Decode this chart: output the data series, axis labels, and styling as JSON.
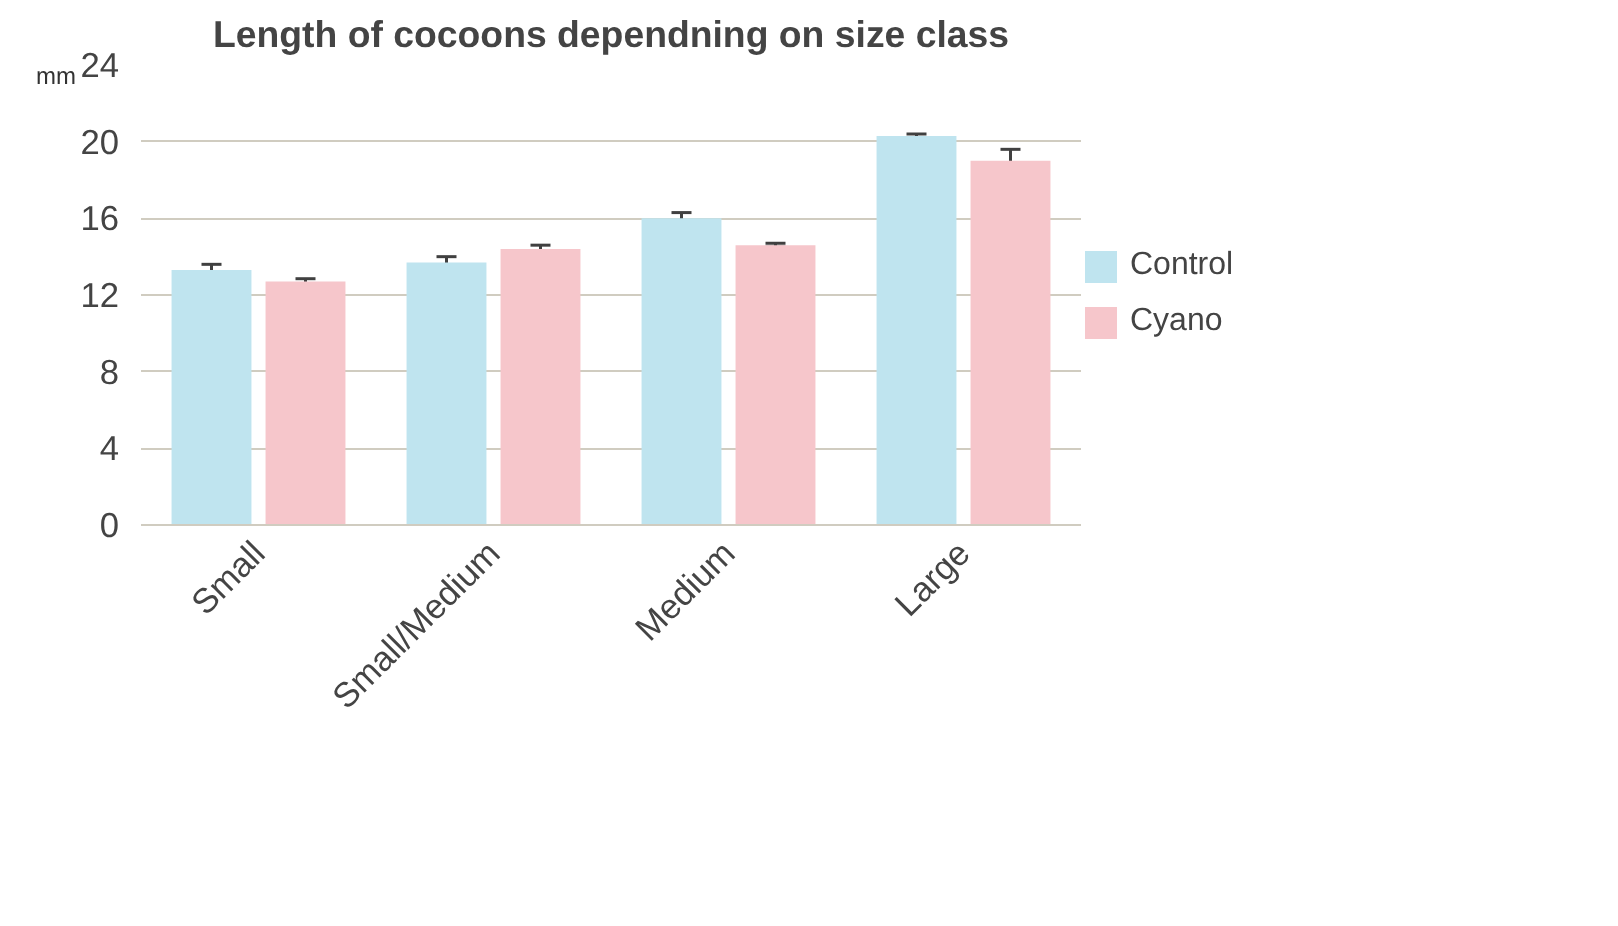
{
  "chart_data": {
    "type": "bar",
    "title": "Length of cocoons dependning on size class",
    "ylabel": "mm",
    "categories": [
      "Small",
      "Small/Medium",
      "Medium",
      "Large"
    ],
    "series": [
      {
        "name": "Control",
        "color": "#bfe4ef",
        "values": [
          13.3,
          13.7,
          16.0,
          20.3
        ],
        "errors": [
          0.3,
          0.3,
          0.3,
          0.1
        ]
      },
      {
        "name": "Cyano",
        "color": "#f6c6cb",
        "values": [
          12.7,
          14.4,
          14.6,
          19.0
        ],
        "errors": [
          0.15,
          0.2,
          0.1,
          0.6
        ]
      }
    ],
    "ylim": [
      0,
      24
    ],
    "yticks": [
      0,
      4,
      8,
      12,
      16,
      20,
      24
    ],
    "grid": "y",
    "legend": "right"
  }
}
